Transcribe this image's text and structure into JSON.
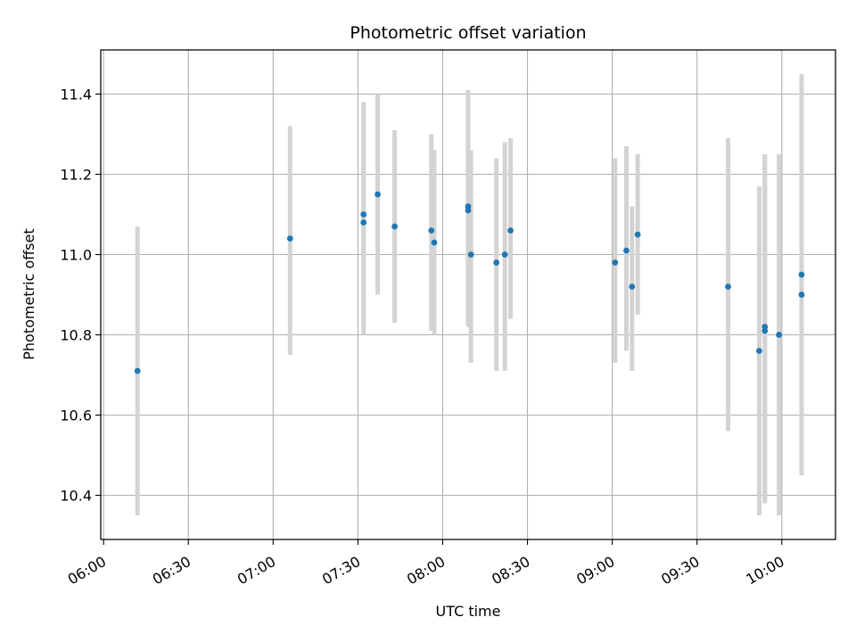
{
  "chart_data": {
    "type": "scatter",
    "title": "Photometric offset variation",
    "xlabel": "UTC time",
    "ylabel": "Photometric offset",
    "xlim": [
      "05:59",
      "10:19"
    ],
    "ylim": [
      10.29,
      11.51
    ],
    "x_ticks": [
      "06:00",
      "06:30",
      "07:00",
      "07:30",
      "08:00",
      "08:30",
      "09:00",
      "09:30",
      "10:00"
    ],
    "y_ticks": [
      "10.4",
      "10.6",
      "10.8",
      "11.0",
      "11.2",
      "11.4"
    ],
    "grid": true,
    "point_color": "#1f77b4",
    "errorbar_color": "#d3d3d3",
    "points": [
      {
        "t": "06:12",
        "y": 10.71,
        "lo": 10.35,
        "hi": 11.07
      },
      {
        "t": "07:06",
        "y": 11.04,
        "lo": 10.75,
        "hi": 11.32
      },
      {
        "t": "07:32",
        "y": 11.08,
        "lo": 10.8,
        "hi": 11.37
      },
      {
        "t": "07:32",
        "y": 11.1,
        "lo": 10.82,
        "hi": 11.38
      },
      {
        "t": "07:37",
        "y": 11.15,
        "lo": 10.9,
        "hi": 11.4
      },
      {
        "t": "07:43",
        "y": 11.07,
        "lo": 10.83,
        "hi": 11.31
      },
      {
        "t": "07:56",
        "y": 11.06,
        "lo": 10.81,
        "hi": 11.3
      },
      {
        "t": "07:57",
        "y": 11.03,
        "lo": 10.8,
        "hi": 11.26
      },
      {
        "t": "08:09",
        "y": 11.12,
        "lo": 10.83,
        "hi": 11.41
      },
      {
        "t": "08:09",
        "y": 11.11,
        "lo": 10.82,
        "hi": 11.39
      },
      {
        "t": "08:10",
        "y": 11.0,
        "lo": 10.73,
        "hi": 11.26
      },
      {
        "t": "08:19",
        "y": 10.98,
        "lo": 10.71,
        "hi": 11.24
      },
      {
        "t": "08:22",
        "y": 11.0,
        "lo": 10.71,
        "hi": 11.28
      },
      {
        "t": "08:24",
        "y": 11.06,
        "lo": 10.84,
        "hi": 11.29
      },
      {
        "t": "09:01",
        "y": 10.98,
        "lo": 10.73,
        "hi": 11.24
      },
      {
        "t": "09:05",
        "y": 11.01,
        "lo": 10.76,
        "hi": 11.27
      },
      {
        "t": "09:07",
        "y": 10.92,
        "lo": 10.71,
        "hi": 11.12
      },
      {
        "t": "09:09",
        "y": 11.05,
        "lo": 10.85,
        "hi": 11.25
      },
      {
        "t": "09:41",
        "y": 10.92,
        "lo": 10.56,
        "hi": 11.29
      },
      {
        "t": "09:52",
        "y": 10.76,
        "lo": 10.35,
        "hi": 11.17
      },
      {
        "t": "09:54",
        "y": 10.81,
        "lo": 10.38,
        "hi": 11.24
      },
      {
        "t": "09:54",
        "y": 10.82,
        "lo": 10.39,
        "hi": 11.25
      },
      {
        "t": "09:59",
        "y": 10.8,
        "lo": 10.35,
        "hi": 11.25
      },
      {
        "t": "10:07",
        "y": 10.95,
        "lo": 10.46,
        "hi": 11.45
      },
      {
        "t": "10:07",
        "y": 10.9,
        "lo": 10.45,
        "hi": 11.35
      }
    ]
  }
}
